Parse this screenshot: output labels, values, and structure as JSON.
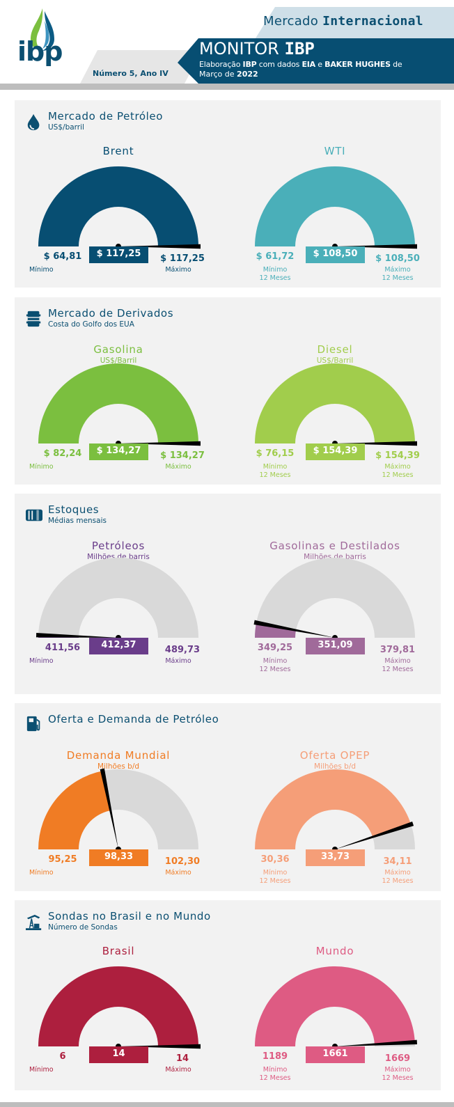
{
  "header": {
    "logo_text": "ibp",
    "section": "Mercado",
    "section_bold": "Internacional",
    "title": "MONITOR",
    "title_bold": "IBP",
    "credit_parts": [
      "Elaboração ",
      "IBP",
      " com dados ",
      "EIA",
      " e ",
      "BAKER HUGHES",
      " de"
    ],
    "date_prefix": "Março de ",
    "date_year": "2022",
    "issue": "Número 5, Ano IV"
  },
  "colors": {
    "title": "#0b4f71",
    "panel_bg": "#f2f2f2",
    "track": "#d9d9d9"
  },
  "panels": [
    {
      "icon": "drop-icon",
      "title": "Mercado de Petróleo",
      "subtitle": "US$/barril",
      "gauges": [
        {
          "title": "Brent",
          "unit": "",
          "color": "#074e72",
          "min": "$ 64,81",
          "value": "$ 117,25",
          "max": "$ 117,25",
          "min_num": 64.81,
          "value_num": 117.25,
          "max_num": 117.25,
          "min_label": "Mínimo",
          "max_label": "Máximo",
          "period": ""
        },
        {
          "title": "WTI",
          "unit": "",
          "color": "#4aafb9",
          "min": "$ 61,72",
          "value": "$ 108,50",
          "max": "$ 108,50",
          "min_num": 61.72,
          "value_num": 108.5,
          "max_num": 108.5,
          "min_label": "Mínimo",
          "max_label": "Máximo",
          "period": "12 Meses"
        }
      ]
    },
    {
      "icon": "barrel-icon",
      "title": "Mercado de Derivados",
      "subtitle": "Costa do Golfo dos EUA",
      "gauges": [
        {
          "title": "Gasolina",
          "unit": "US$/Barril",
          "color": "#7bbf3f",
          "min": "$ 82,24",
          "value": "$ 134,27",
          "max": "$ 134,27",
          "min_num": 82.24,
          "value_num": 134.27,
          "max_num": 134.27,
          "min_label": "Mínimo",
          "max_label": "Máximo",
          "period": ""
        },
        {
          "title": "Diesel",
          "unit": "US$/Barril",
          "color": "#a1cd4c",
          "min": "$ 76,15",
          "value": "$ 154,39",
          "max": "$ 154,39",
          "min_num": 76.15,
          "value_num": 154.39,
          "max_num": 154.39,
          "min_label": "Mínimo",
          "max_label": "Máximo",
          "period": "12 Meses"
        }
      ]
    },
    {
      "icon": "storage-tank-icon",
      "title": "Estoques",
      "subtitle": "Médias mensais",
      "gauges": [
        {
          "title": "Petróleos",
          "unit": "Milhões de barris",
          "color": "#6a3d8a",
          "min": "411,56",
          "value": "412,37",
          "max": "489,73",
          "min_num": 411.56,
          "value_num": 412.37,
          "max_num": 489.73,
          "min_label": "Mínimo",
          "max_label": "Máximo",
          "period": ""
        },
        {
          "title": "Gasolinas e Destilados",
          "unit": "Milhões de barris",
          "color": "#a06a9a",
          "min": "349,25",
          "value": "351,09",
          "max": "379,81",
          "min_num": 349.25,
          "value_num": 351.09,
          "max_num": 379.81,
          "min_label": "Mínimo",
          "max_label": "Máximo",
          "period": "12 Meses"
        }
      ]
    },
    {
      "icon": "fuel-pump-icon",
      "title": "Oferta e Demanda de Petróleo",
      "subtitle": "",
      "gauges": [
        {
          "title": "Demanda Mundial",
          "unit": "Milhões b/d",
          "color": "#f07c24",
          "min": "95,25",
          "value": "98,33",
          "max": "102,30",
          "min_num": 95.25,
          "value_num": 98.33,
          "max_num": 102.3,
          "min_label": "Mínimo",
          "max_label": "Máximo",
          "period": ""
        },
        {
          "title": "Oferta OPEP",
          "unit": "Milhões b/d",
          "color": "#f59e78",
          "min": "30,36",
          "value": "33,73",
          "max": "34,11",
          "min_num": 30.36,
          "value_num": 33.73,
          "max_num": 34.11,
          "min_label": "Mínimo",
          "max_label": "Máximo",
          "period": "12 Meses"
        }
      ]
    },
    {
      "icon": "oil-rig-icon",
      "title": "Sondas no Brasil e no Mundo",
      "subtitle": "Número de Sondas",
      "gauges": [
        {
          "title": "Brasil",
          "unit": "",
          "color": "#ad1f3e",
          "min": "6",
          "value": "14",
          "max": "14",
          "min_num": 6,
          "value_num": 14,
          "max_num": 14,
          "min_label": "Mínimo",
          "max_label": "Máximo",
          "period": ""
        },
        {
          "title": "Mundo",
          "unit": "",
          "color": "#de5b83",
          "min": "1189",
          "value": "1661",
          "max": "1669",
          "min_num": 1189,
          "value_num": 1661,
          "max_num": 1669,
          "min_label": "Mínimo",
          "max_label": "Máximo",
          "period": "12 Meses"
        }
      ]
    }
  ]
}
